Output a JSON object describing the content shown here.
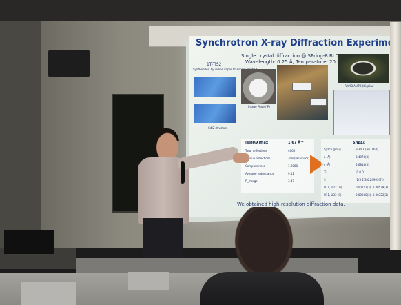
{
  "slide": {
    "title": "Synchrotron X-ray Diffraction Experiment",
    "subtitle": "Single crystal diffraction @ SPring-8 BL02B1",
    "conditions": "Wavelength: 0.25 Å, Temperature: 20 K",
    "sample_name": "1T-TiS2",
    "sample_note": "Synthesized by iodine vapor transport method",
    "structure_caption": "CdI2 structure",
    "detector_caption": "Image Plate (IP)",
    "software_caption": "RAPID AUTO (Rigaku)",
    "table_header_left": "(sinθ/λ)max",
    "table_header_value": "1.67 Å⁻¹",
    "table_rows": [
      {
        "label": "Total reflections",
        "value": "4065"
      },
      {
        "label": "Unique reflections",
        "value": "308 (hkl unifor)"
      },
      {
        "label": "Completeness",
        "value": "1.0000"
      },
      {
        "label": "Average redundancy",
        "value": "9.11"
      },
      {
        "label": "R_merge",
        "value": "3.47"
      }
    ],
    "shelx_title": "SHELX",
    "shelx_rows": [
      {
        "label": "Space group",
        "value": "P-3m1 (No. 164)"
      },
      {
        "label": "a (Å)",
        "value": "3.4078(3)"
      },
      {
        "label": "c (Å)",
        "value": "5.6814(3)"
      },
      {
        "label": "Ti",
        "value": "(0 0 0)"
      },
      {
        "label": "S",
        "value": "(1/3 2/3 0.24995(7))"
      },
      {
        "label": "U11, U22 (Ti)",
        "value": "0.00222(3), 0.00579(3)"
      },
      {
        "label": "U11, U33 (S)",
        "value": "0.00280(3), 0.00323(3)"
      }
    ],
    "footer": "We obtained high-resolution diffraction data."
  },
  "colors": {
    "slide_bg": "#e3ebe6",
    "title": "#20408c",
    "accent_arrow": "#e07020",
    "wall": "#8e8b80",
    "shirt": "#c3b2ad"
  }
}
